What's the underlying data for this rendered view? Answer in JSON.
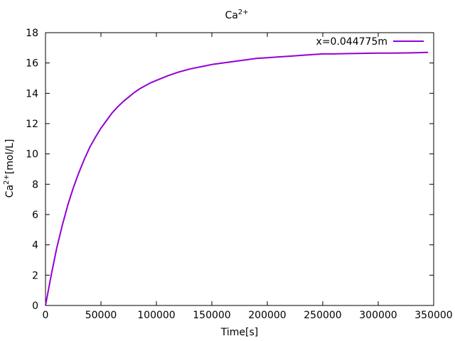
{
  "chart_data": {
    "type": "line",
    "title": {
      "base": "Ca",
      "sup": "2+"
    },
    "xlabel": "Time[s]",
    "ylabel": {
      "base": "Ca",
      "sup": "2+",
      "rest": "[mol/L]"
    },
    "xlim": [
      0,
      350000
    ],
    "ylim": [
      0,
      18
    ],
    "xticks": [
      0,
      50000,
      100000,
      150000,
      200000,
      250000,
      300000,
      350000
    ],
    "yticks": [
      0,
      2,
      4,
      6,
      8,
      10,
      12,
      14,
      16,
      18
    ],
    "grid": false,
    "legend_position": "top-right",
    "series": [
      {
        "name": "x=0.044775m",
        "color": "#9400d3",
        "x": [
          0,
          5000,
          10000,
          15000,
          20000,
          25000,
          30000,
          35000,
          40000,
          45000,
          50000,
          55000,
          60000,
          65000,
          70000,
          75000,
          80000,
          85000,
          90000,
          95000,
          100000,
          110000,
          120000,
          130000,
          140000,
          150000,
          160000,
          170000,
          180000,
          190000,
          200000,
          210000,
          220000,
          230000,
          240000,
          250000,
          260000,
          270000,
          280000,
          290000,
          300000,
          310000,
          320000,
          330000,
          345000
        ],
        "y": [
          0,
          1.95,
          3.75,
          5.25,
          6.6,
          7.75,
          8.75,
          9.65,
          10.45,
          11.1,
          11.7,
          12.2,
          12.7,
          13.1,
          13.45,
          13.75,
          14.05,
          14.3,
          14.5,
          14.7,
          14.85,
          15.15,
          15.4,
          15.6,
          15.75,
          15.9,
          16.0,
          16.1,
          16.2,
          16.3,
          16.35,
          16.4,
          16.45,
          16.5,
          16.55,
          16.6,
          16.6,
          16.62,
          16.63,
          16.64,
          16.65,
          16.65,
          16.66,
          16.67,
          16.7
        ]
      }
    ]
  }
}
